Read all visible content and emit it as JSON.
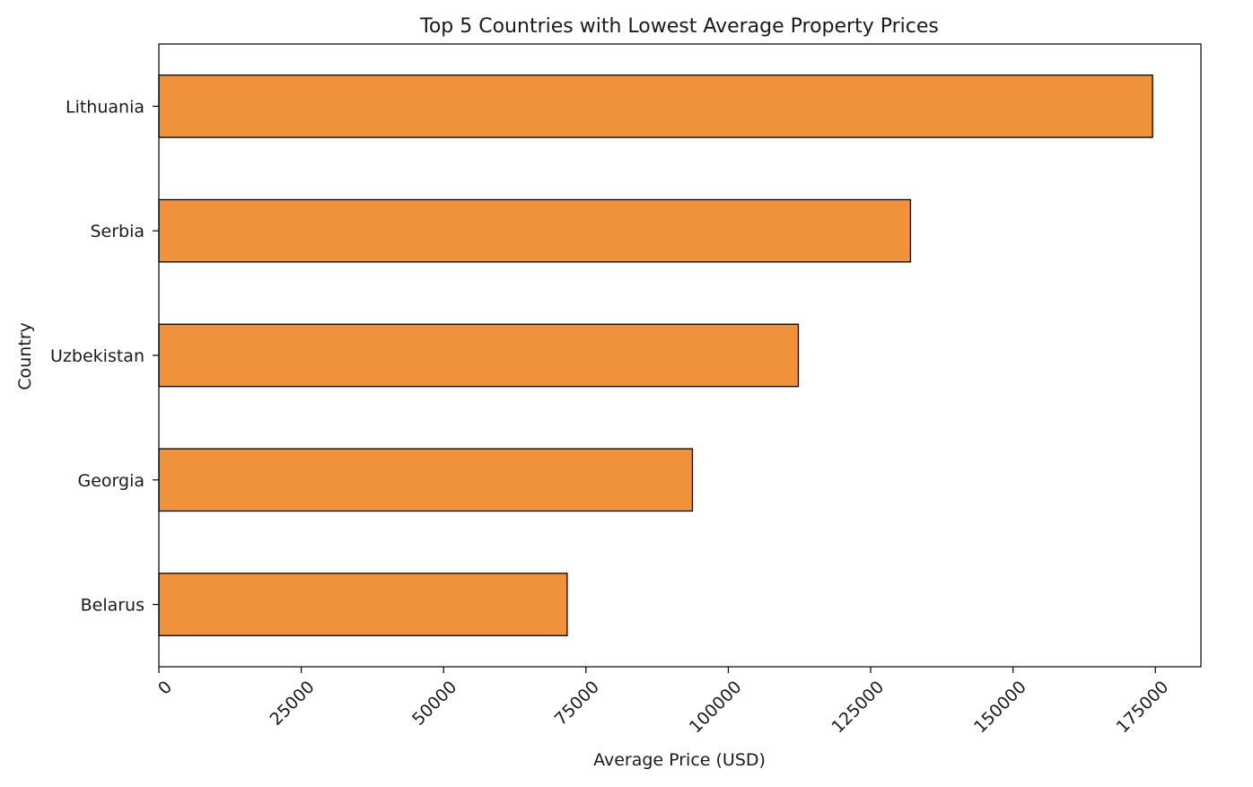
{
  "chart_data": {
    "type": "bar",
    "orientation": "horizontal",
    "title": "Top 5 Countries with Lowest Average Property Prices",
    "xlabel": "Average Price (USD)",
    "ylabel": "Country",
    "categories": [
      "Lithuania",
      "Serbia",
      "Uzbekistan",
      "Georgia",
      "Belarus"
    ],
    "values": [
      174500,
      132000,
      112300,
      93700,
      71700
    ],
    "xlim": [
      0,
      183000
    ],
    "xticks": [
      0,
      25000,
      50000,
      75000,
      100000,
      125000,
      150000,
      175000
    ],
    "xtick_labels": [
      "0",
      "25000",
      "50000",
      "75000",
      "100000",
      "125000",
      "150000",
      "175000"
    ],
    "xtick_rotation": 45,
    "grid": false,
    "bar_color": "#f0923a",
    "bar_edge_color": "#000000"
  }
}
